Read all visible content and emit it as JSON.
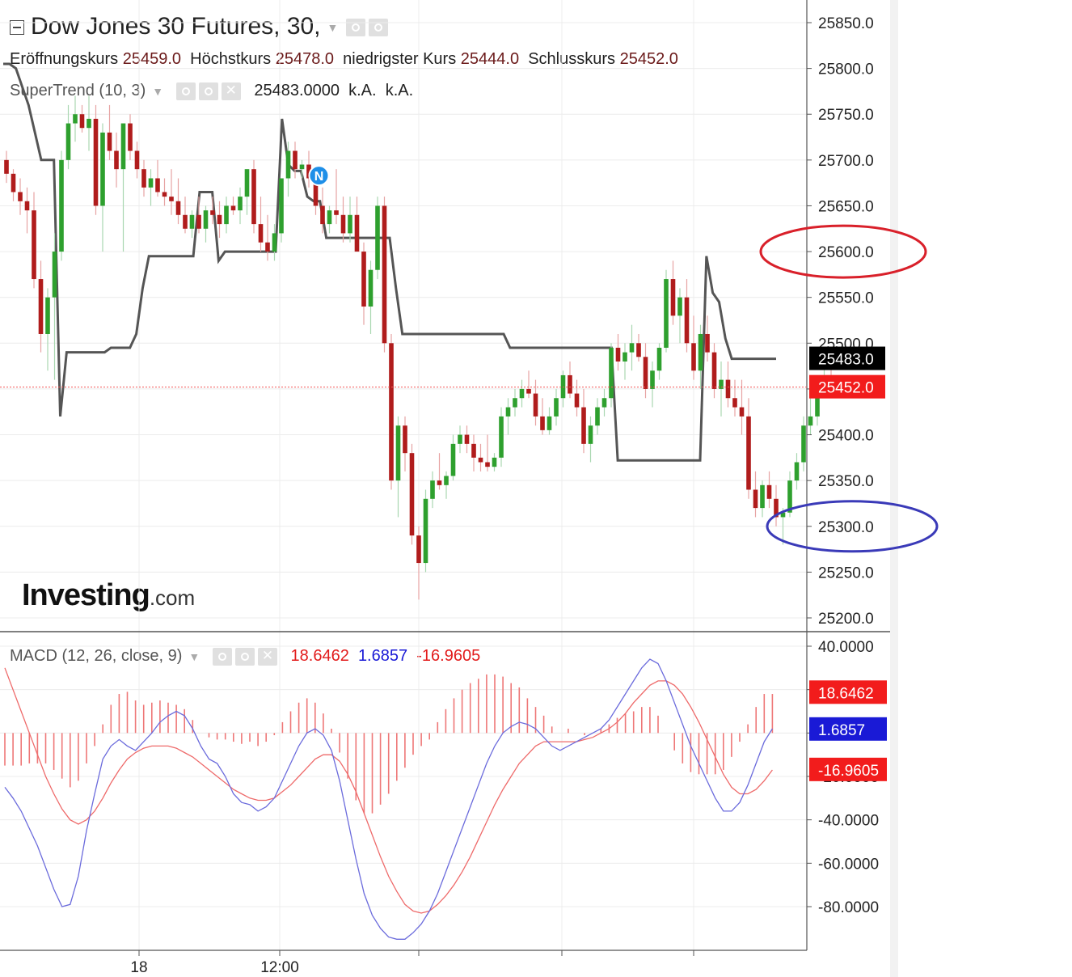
{
  "header": {
    "title": "Dow Jones 30 Futures, 30,",
    "ohlc": [
      {
        "label": "Eröffnungskurs",
        "value": "25459.0"
      },
      {
        "label": "Höchstkurs",
        "value": "25478.0"
      },
      {
        "label": "niedrigster Kurs",
        "value": "25444.0"
      },
      {
        "label": "Schlusskurs",
        "value": "25452.0"
      }
    ]
  },
  "supertrend": {
    "label": "SuperTrend (10, 3)",
    "value": "25483.0000",
    "na1": "k.A.",
    "na2": "k.A."
  },
  "macd_legend": {
    "label": "MACD (12, 26, close, 9)",
    "hist": "18.6462",
    "macd": "1.6857",
    "signal": "-16.9605"
  },
  "logo": {
    "main": "Investing",
    "suffix": ".com"
  },
  "colors": {
    "up": "#2ea02e",
    "down": "#b01c1c",
    "supertrend": "#555555",
    "macd_line": "#6b6bdc",
    "signal_line": "#ee6a6a",
    "hist": "#ee7777",
    "red_circle": "#d9202a",
    "blue_circle": "#3a3ab8"
  },
  "price_axis": {
    "ticks": [
      "25850.0",
      "25800.0",
      "25750.0",
      "25700.0",
      "25650.0",
      "25600.0",
      "25550.0",
      "25500.0",
      "25450.0",
      "25400.0",
      "25350.0",
      "25300.0",
      "25250.0",
      "25200.0"
    ],
    "labels": [
      {
        "text": "25483.0",
        "value": 25483,
        "bg": "#000000"
      },
      {
        "text": "25452.0",
        "value": 25452,
        "bg": "#f21c1c"
      }
    ]
  },
  "macd_axis": {
    "ticks": [
      "40.0000",
      "20.0000",
      "0.0000",
      "-20.0000",
      "-40.0000",
      "-60.0000",
      "-80.0000"
    ],
    "labels": [
      {
        "text": "18.6462",
        "value": 18.6462,
        "bg": "#f21c1c"
      },
      {
        "text": "1.6857",
        "value": 1.6857,
        "bg": "#1a1ad6"
      },
      {
        "text": "-16.9605",
        "value": -16.9605,
        "bg": "#f21c1c"
      }
    ]
  },
  "time_axis": {
    "labels": [
      {
        "text": "18",
        "index": 16
      },
      {
        "text": "12:00",
        "index": 34
      }
    ]
  },
  "chart_data": {
    "type": "candlestick",
    "title": "Dow Jones 30 Futures, 30,",
    "ylim": [
      25185,
      25865
    ],
    "candles": [
      [
        25700,
        25710,
        25675,
        25685
      ],
      [
        25685,
        25690,
        25655,
        25665
      ],
      [
        25665,
        25680,
        25640,
        25655
      ],
      [
        25655,
        25670,
        25620,
        25645
      ],
      [
        25645,
        25665,
        25560,
        25570
      ],
      [
        25570,
        25590,
        25490,
        25510
      ],
      [
        25510,
        25560,
        25470,
        25550
      ],
      [
        25550,
        25620,
        25460,
        25600
      ],
      [
        25600,
        25710,
        25590,
        25700
      ],
      [
        25700,
        25760,
        25690,
        25740
      ],
      [
        25740,
        25770,
        25720,
        25750
      ],
      [
        25750,
        25760,
        25730,
        25735
      ],
      [
        25735,
        25770,
        25710,
        25745
      ],
      [
        25745,
        25760,
        25640,
        25650
      ],
      [
        25650,
        25740,
        25600,
        25730
      ],
      [
        25730,
        25760,
        25700,
        25710
      ],
      [
        25710,
        25730,
        25670,
        25690
      ],
      [
        25690,
        25740,
        25600,
        25740
      ],
      [
        25740,
        25750,
        25700,
        25710
      ],
      [
        25710,
        25720,
        25680,
        25690
      ],
      [
        25690,
        25700,
        25660,
        25670
      ],
      [
        25670,
        25690,
        25650,
        25680
      ],
      [
        25680,
        25700,
        25660,
        25665
      ],
      [
        25665,
        25680,
        25650,
        25660
      ],
      [
        25660,
        25690,
        25640,
        25655
      ],
      [
        25655,
        25680,
        25630,
        25640
      ],
      [
        25640,
        25660,
        25620,
        25625
      ],
      [
        25625,
        25645,
        25615,
        25640
      ],
      [
        25640,
        25660,
        25620,
        25625
      ],
      [
        25625,
        25650,
        25610,
        25645
      ],
      [
        25645,
        25660,
        25630,
        25640
      ],
      [
        25640,
        25655,
        25615,
        25630
      ],
      [
        25630,
        25660,
        25620,
        25650
      ],
      [
        25650,
        25660,
        25640,
        25645
      ],
      [
        25645,
        25670,
        25630,
        25660
      ],
      [
        25660,
        25690,
        25640,
        25690
      ],
      [
        25690,
        25700,
        25620,
        25630
      ],
      [
        25630,
        25660,
        25600,
        25610
      ],
      [
        25610,
        25640,
        25590,
        25600
      ],
      [
        25600,
        25630,
        25590,
        25620
      ],
      [
        25620,
        25680,
        25610,
        25680
      ],
      [
        25680,
        25720,
        25660,
        25710
      ],
      [
        25710,
        25720,
        25680,
        25690
      ],
      [
        25690,
        25700,
        25680,
        25695
      ],
      [
        25695,
        25710,
        25670,
        25680
      ],
      [
        25680,
        25690,
        25640,
        25650
      ],
      [
        25650,
        25670,
        25620,
        25630
      ],
      [
        25630,
        25650,
        25620,
        25645
      ],
      [
        25645,
        25690,
        25630,
        25640
      ],
      [
        25640,
        25660,
        25610,
        25620
      ],
      [
        25620,
        25660,
        25610,
        25640
      ],
      [
        25640,
        25660,
        25600,
        25600
      ],
      [
        25600,
        25610,
        25520,
        25540
      ],
      [
        25540,
        25590,
        25510,
        25580
      ],
      [
        25580,
        25660,
        25570,
        25650
      ],
      [
        25650,
        25660,
        25490,
        25500
      ],
      [
        25500,
        25510,
        25340,
        25350
      ],
      [
        25350,
        25420,
        25310,
        25410
      ],
      [
        25410,
        25420,
        25360,
        25380
      ],
      [
        25380,
        25390,
        25280,
        25290
      ],
      [
        25290,
        25300,
        25220,
        25260
      ],
      [
        25260,
        25340,
        25250,
        25330
      ],
      [
        25330,
        25360,
        25320,
        25350
      ],
      [
        25350,
        25380,
        25340,
        25345
      ],
      [
        25345,
        25360,
        25330,
        25355
      ],
      [
        25355,
        25400,
        25350,
        25390
      ],
      [
        25390,
        25410,
        25380,
        25400
      ],
      [
        25400,
        25410,
        25380,
        25390
      ],
      [
        25390,
        25400,
        25360,
        25375
      ],
      [
        25375,
        25390,
        25360,
        25370
      ],
      [
        25370,
        25400,
        25360,
        25365
      ],
      [
        25365,
        25380,
        25360,
        25375
      ],
      [
        25375,
        25430,
        25365,
        25420
      ],
      [
        25420,
        25440,
        25400,
        25430
      ],
      [
        25430,
        25450,
        25420,
        25440
      ],
      [
        25440,
        25460,
        25430,
        25450
      ],
      [
        25450,
        25470,
        25440,
        25445
      ],
      [
        25445,
        25460,
        25410,
        25420
      ],
      [
        25420,
        25440,
        25400,
        25405
      ],
      [
        25405,
        25430,
        25400,
        25420
      ],
      [
        25420,
        25450,
        25410,
        25440
      ],
      [
        25440,
        25470,
        25430,
        25465
      ],
      [
        25465,
        25480,
        25440,
        25445
      ],
      [
        25445,
        25460,
        25420,
        25430
      ],
      [
        25430,
        25450,
        25380,
        25390
      ],
      [
        25390,
        25420,
        25370,
        25410
      ],
      [
        25410,
        25440,
        25400,
        25430
      ],
      [
        25430,
        25450,
        25420,
        25440
      ],
      [
        25440,
        25500,
        25430,
        25495
      ],
      [
        25495,
        25510,
        25470,
        25480
      ],
      [
        25480,
        25500,
        25460,
        25490
      ],
      [
        25490,
        25520,
        25470,
        25500
      ],
      [
        25500,
        25510,
        25480,
        25485
      ],
      [
        25485,
        25500,
        25440,
        25450
      ],
      [
        25450,
        25480,
        25430,
        25470
      ],
      [
        25470,
        25500,
        25460,
        25495
      ],
      [
        25495,
        25580,
        25490,
        25570
      ],
      [
        25570,
        25590,
        25520,
        25530
      ],
      [
        25530,
        25560,
        25500,
        25550
      ],
      [
        25550,
        25570,
        25490,
        25500
      ],
      [
        25500,
        25530,
        25460,
        25470
      ],
      [
        25470,
        25520,
        25450,
        25510
      ],
      [
        25510,
        25530,
        25480,
        25490
      ],
      [
        25490,
        25500,
        25440,
        25450
      ],
      [
        25450,
        25480,
        25420,
        25460
      ],
      [
        25460,
        25480,
        25430,
        25440
      ],
      [
        25440,
        25460,
        25420,
        25430
      ],
      [
        25430,
        25460,
        25400,
        25420
      ],
      [
        25420,
        25440,
        25330,
        25340
      ],
      [
        25340,
        25360,
        25310,
        25320
      ],
      [
        25320,
        25350,
        25310,
        25345
      ],
      [
        25345,
        25360,
        25320,
        25330
      ],
      [
        25330,
        25345,
        25300,
        25310
      ],
      [
        25310,
        25320,
        25280,
        25315
      ],
      [
        25315,
        25360,
        25310,
        25350
      ],
      [
        25350,
        25380,
        25340,
        25370
      ],
      [
        25370,
        25420,
        25360,
        25410
      ],
      [
        25410,
        25440,
        25400,
        25420
      ],
      [
        25420,
        25460,
        25410,
        25455
      ],
      [
        25455,
        25478,
        25440,
        25460
      ],
      [
        25459,
        25478,
        25444,
        25452
      ]
    ],
    "supertrend": [
      25805,
      25805,
      25800,
      25780,
      25760,
      25730,
      25700,
      25700,
      25700,
      25420,
      25490,
      25490,
      25490,
      25490,
      25490,
      25490,
      25490,
      25495,
      25495,
      25495,
      25495,
      25510,
      25560,
      25595,
      25595,
      25595,
      25595,
      25595,
      25595,
      25595,
      25595,
      25665,
      25665,
      25665,
      25590,
      25600,
      25600,
      25600,
      25600,
      25600,
      25600,
      25600,
      25600,
      25600,
      25745,
      25695,
      25688,
      25688,
      25660,
      25655,
      25655,
      25615,
      25615,
      25615,
      25615,
      25615,
      25615,
      25615,
      25615,
      25615,
      25615,
      25615,
      25560,
      25510,
      25510,
      25510,
      25510,
      25510,
      25510,
      25510,
      25510,
      25510,
      25510,
      25510,
      25510,
      25510,
      25510,
      25510,
      25510,
      25510,
      25495,
      25495,
      25495,
      25495,
      25495,
      25495,
      25495,
      25495,
      25495,
      25495,
      25495,
      25495,
      25495,
      25495,
      25495,
      25495,
      25495,
      25372,
      25372,
      25372,
      25372,
      25372,
      25372,
      25372,
      25372,
      25372,
      25372,
      25372,
      25372,
      25372,
      25372,
      25595,
      25555,
      25545,
      25505,
      25483,
      25483,
      25483,
      25483,
      25483,
      25483,
      25483,
      25483
    ],
    "macd": [
      -25,
      -30,
      -36,
      -44,
      -52,
      -62,
      -72,
      -80,
      -79,
      -66,
      -45,
      -28,
      -12,
      -6,
      -3,
      -6,
      -8,
      -4,
      0,
      5,
      8,
      10,
      8,
      2,
      -6,
      -12,
      -14,
      -20,
      -28,
      -32,
      -33,
      -36,
      -34,
      -30,
      -22,
      -14,
      -6,
      0,
      2,
      -1,
      -8,
      -22,
      -40,
      -58,
      -74,
      -84,
      -90,
      -94,
      -95,
      -95,
      -92,
      -88,
      -82,
      -74,
      -64,
      -54,
      -44,
      -34,
      -24,
      -14,
      -6,
      0,
      3,
      5,
      4,
      2,
      -2,
      -6,
      -8,
      -6,
      -4,
      -2,
      0,
      2,
      6,
      12,
      18,
      24,
      30,
      34,
      32,
      24,
      14,
      4,
      -6,
      -14,
      -22,
      -30,
      -36,
      -36,
      -32,
      -24,
      -14,
      -4,
      2
    ],
    "signal": [
      30,
      20,
      10,
      0,
      -10,
      -20,
      -28,
      -35,
      -40,
      -42,
      -40,
      -36,
      -30,
      -23,
      -17,
      -12,
      -9,
      -7,
      -6,
      -6,
      -6,
      -7,
      -9,
      -11,
      -14,
      -17,
      -20,
      -23,
      -26,
      -28,
      -30,
      -31,
      -31,
      -30,
      -27,
      -24,
      -20,
      -16,
      -12,
      -10,
      -10,
      -13,
      -19,
      -27,
      -37,
      -47,
      -57,
      -66,
      -73,
      -79,
      -82,
      -83,
      -82,
      -79,
      -75,
      -70,
      -64,
      -57,
      -49,
      -41,
      -33,
      -26,
      -20,
      -14,
      -10,
      -6,
      -4,
      -4,
      -4,
      -4,
      -4,
      -3,
      -2,
      0,
      2,
      5,
      9,
      14,
      18,
      22,
      24,
      24,
      22,
      18,
      12,
      5,
      -3,
      -11,
      -19,
      -25,
      -28,
      -28,
      -26,
      -22,
      -17
    ],
    "histogram": [
      -15,
      -15,
      -15,
      -14,
      -14,
      -14,
      -17,
      -21,
      -25,
      -22,
      -14,
      -6,
      4,
      13,
      18,
      19,
      15,
      13,
      14,
      15,
      14,
      13,
      11,
      6,
      0,
      -2,
      -3,
      -3,
      -4,
      -5,
      -4,
      -6,
      -4,
      -1,
      5,
      10,
      14,
      16,
      14,
      9,
      2,
      -9,
      -21,
      -31,
      -37,
      -37,
      -33,
      -28,
      -22,
      -16,
      -10,
      -6,
      -3,
      5,
      11,
      16,
      20,
      23,
      25,
      27,
      27,
      26,
      23,
      21,
      16,
      12,
      8,
      3,
      0,
      2,
      0,
      -1,
      0,
      2,
      4,
      7,
      9,
      10,
      12,
      12,
      8,
      0,
      -8,
      -14,
      -18,
      -19,
      -19,
      -19,
      -17,
      -11,
      -4,
      4,
      12,
      18,
      18
    ],
    "marker": {
      "label": "N",
      "index": 49,
      "value": 25683
    },
    "annotations": [
      {
        "shape": "ellipse",
        "color": "red",
        "around": "25600.0"
      },
      {
        "shape": "ellipse",
        "color": "blue",
        "around": "25300.0"
      }
    ]
  }
}
